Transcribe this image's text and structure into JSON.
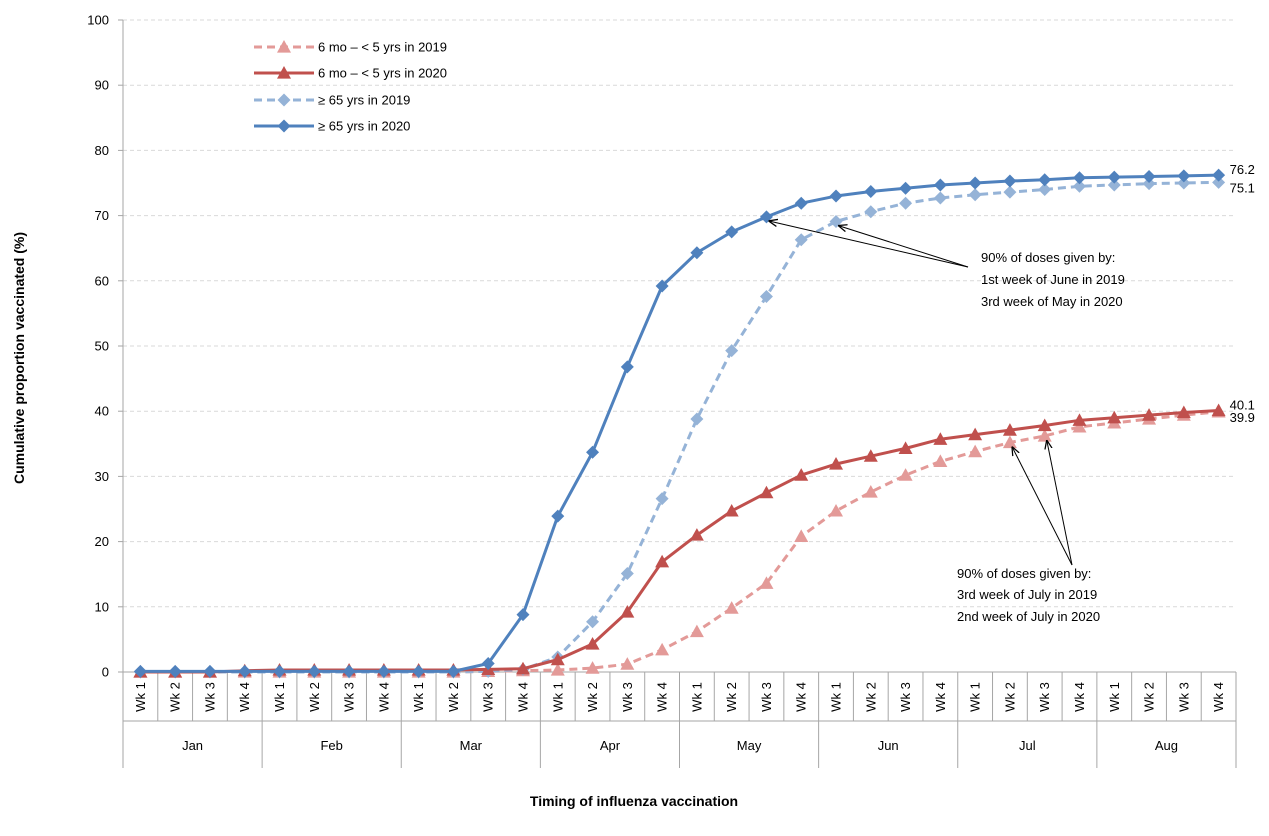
{
  "chart_data": {
    "type": "line",
    "title": "",
    "xlabel": "Timing of influenza vaccination",
    "ylabel": "Cumulative proportion vaccinated (%)",
    "ylim": [
      0,
      100
    ],
    "yticks": [
      "0",
      "10",
      "20",
      "30",
      "40",
      "50",
      "60",
      "70",
      "80",
      "90",
      "100"
    ],
    "grid": "horizontal dashed",
    "legend_position": "top-left",
    "weeks": [
      "Wk 1",
      "Wk 2",
      "Wk 3",
      "Wk 4"
    ],
    "months": [
      "Jan",
      "Feb",
      "Mar",
      "Apr",
      "May",
      "Jun",
      "Jul",
      "Aug"
    ],
    "series": [
      {
        "name": "6 mo – < 5 yrs in 2019",
        "color": "#e39a98",
        "dashed": true,
        "marker": "triangle",
        "values": [
          0,
          0,
          0,
          0,
          0,
          0,
          0,
          0,
          0,
          0,
          0.1,
          0.2,
          0.3,
          0.6,
          1.2,
          3.4,
          6.2,
          9.8,
          13.6,
          20.8,
          24.7,
          27.6,
          30.2,
          32.3,
          33.8,
          35.2,
          36.2,
          37.6,
          38.2,
          38.8,
          39.4,
          39.9
        ],
        "end_label": "39.9"
      },
      {
        "name": "6 mo – < 5 yrs in 2020",
        "color": "#c0504d",
        "dashed": false,
        "marker": "triangle",
        "values": [
          0,
          0,
          0,
          0.2,
          0.3,
          0.3,
          0.3,
          0.3,
          0.3,
          0.3,
          0.4,
          0.5,
          1.9,
          4.3,
          9.2,
          16.9,
          21.0,
          24.7,
          27.5,
          30.2,
          31.9,
          33.1,
          34.3,
          35.7,
          36.4,
          37.1,
          37.8,
          38.6,
          39.0,
          39.4,
          39.8,
          40.1
        ],
        "end_label": "40.1"
      },
      {
        "name": "≥ 65 yrs in 2019",
        "color": "#95b3d7",
        "dashed": true,
        "marker": "diamond",
        "values": [
          0,
          0,
          0,
          0,
          0,
          0,
          0,
          0,
          0,
          0,
          0.1,
          0.4,
          2.3,
          7.7,
          15.1,
          26.6,
          38.8,
          49.3,
          57.6,
          66.3,
          69.1,
          70.6,
          71.9,
          72.7,
          73.2,
          73.6,
          74.0,
          74.5,
          74.7,
          74.9,
          75.0,
          75.1
        ],
        "end_label": "75.1"
      },
      {
        "name": "≥ 65 yrs in 2020",
        "color": "#4f81bd",
        "dashed": false,
        "marker": "diamond",
        "values": [
          0.1,
          0.1,
          0.1,
          0.1,
          0.1,
          0.1,
          0.1,
          0.1,
          0.1,
          0.1,
          1.3,
          8.8,
          23.9,
          33.7,
          46.8,
          59.2,
          64.3,
          67.5,
          69.8,
          71.9,
          73.0,
          73.7,
          74.2,
          74.7,
          75.0,
          75.3,
          75.5,
          75.8,
          75.9,
          76.0,
          76.1,
          76.2
        ],
        "end_label": "76.2"
      }
    ],
    "annotations": [
      {
        "lines": [
          "90% of doses given by:",
          "1st week of June in 2019",
          "3rd week of May in 2020"
        ]
      },
      {
        "lines": [
          "90% of doses given by:",
          "3rd week of July in 2019",
          "2nd week of July in 2020"
        ]
      }
    ]
  }
}
